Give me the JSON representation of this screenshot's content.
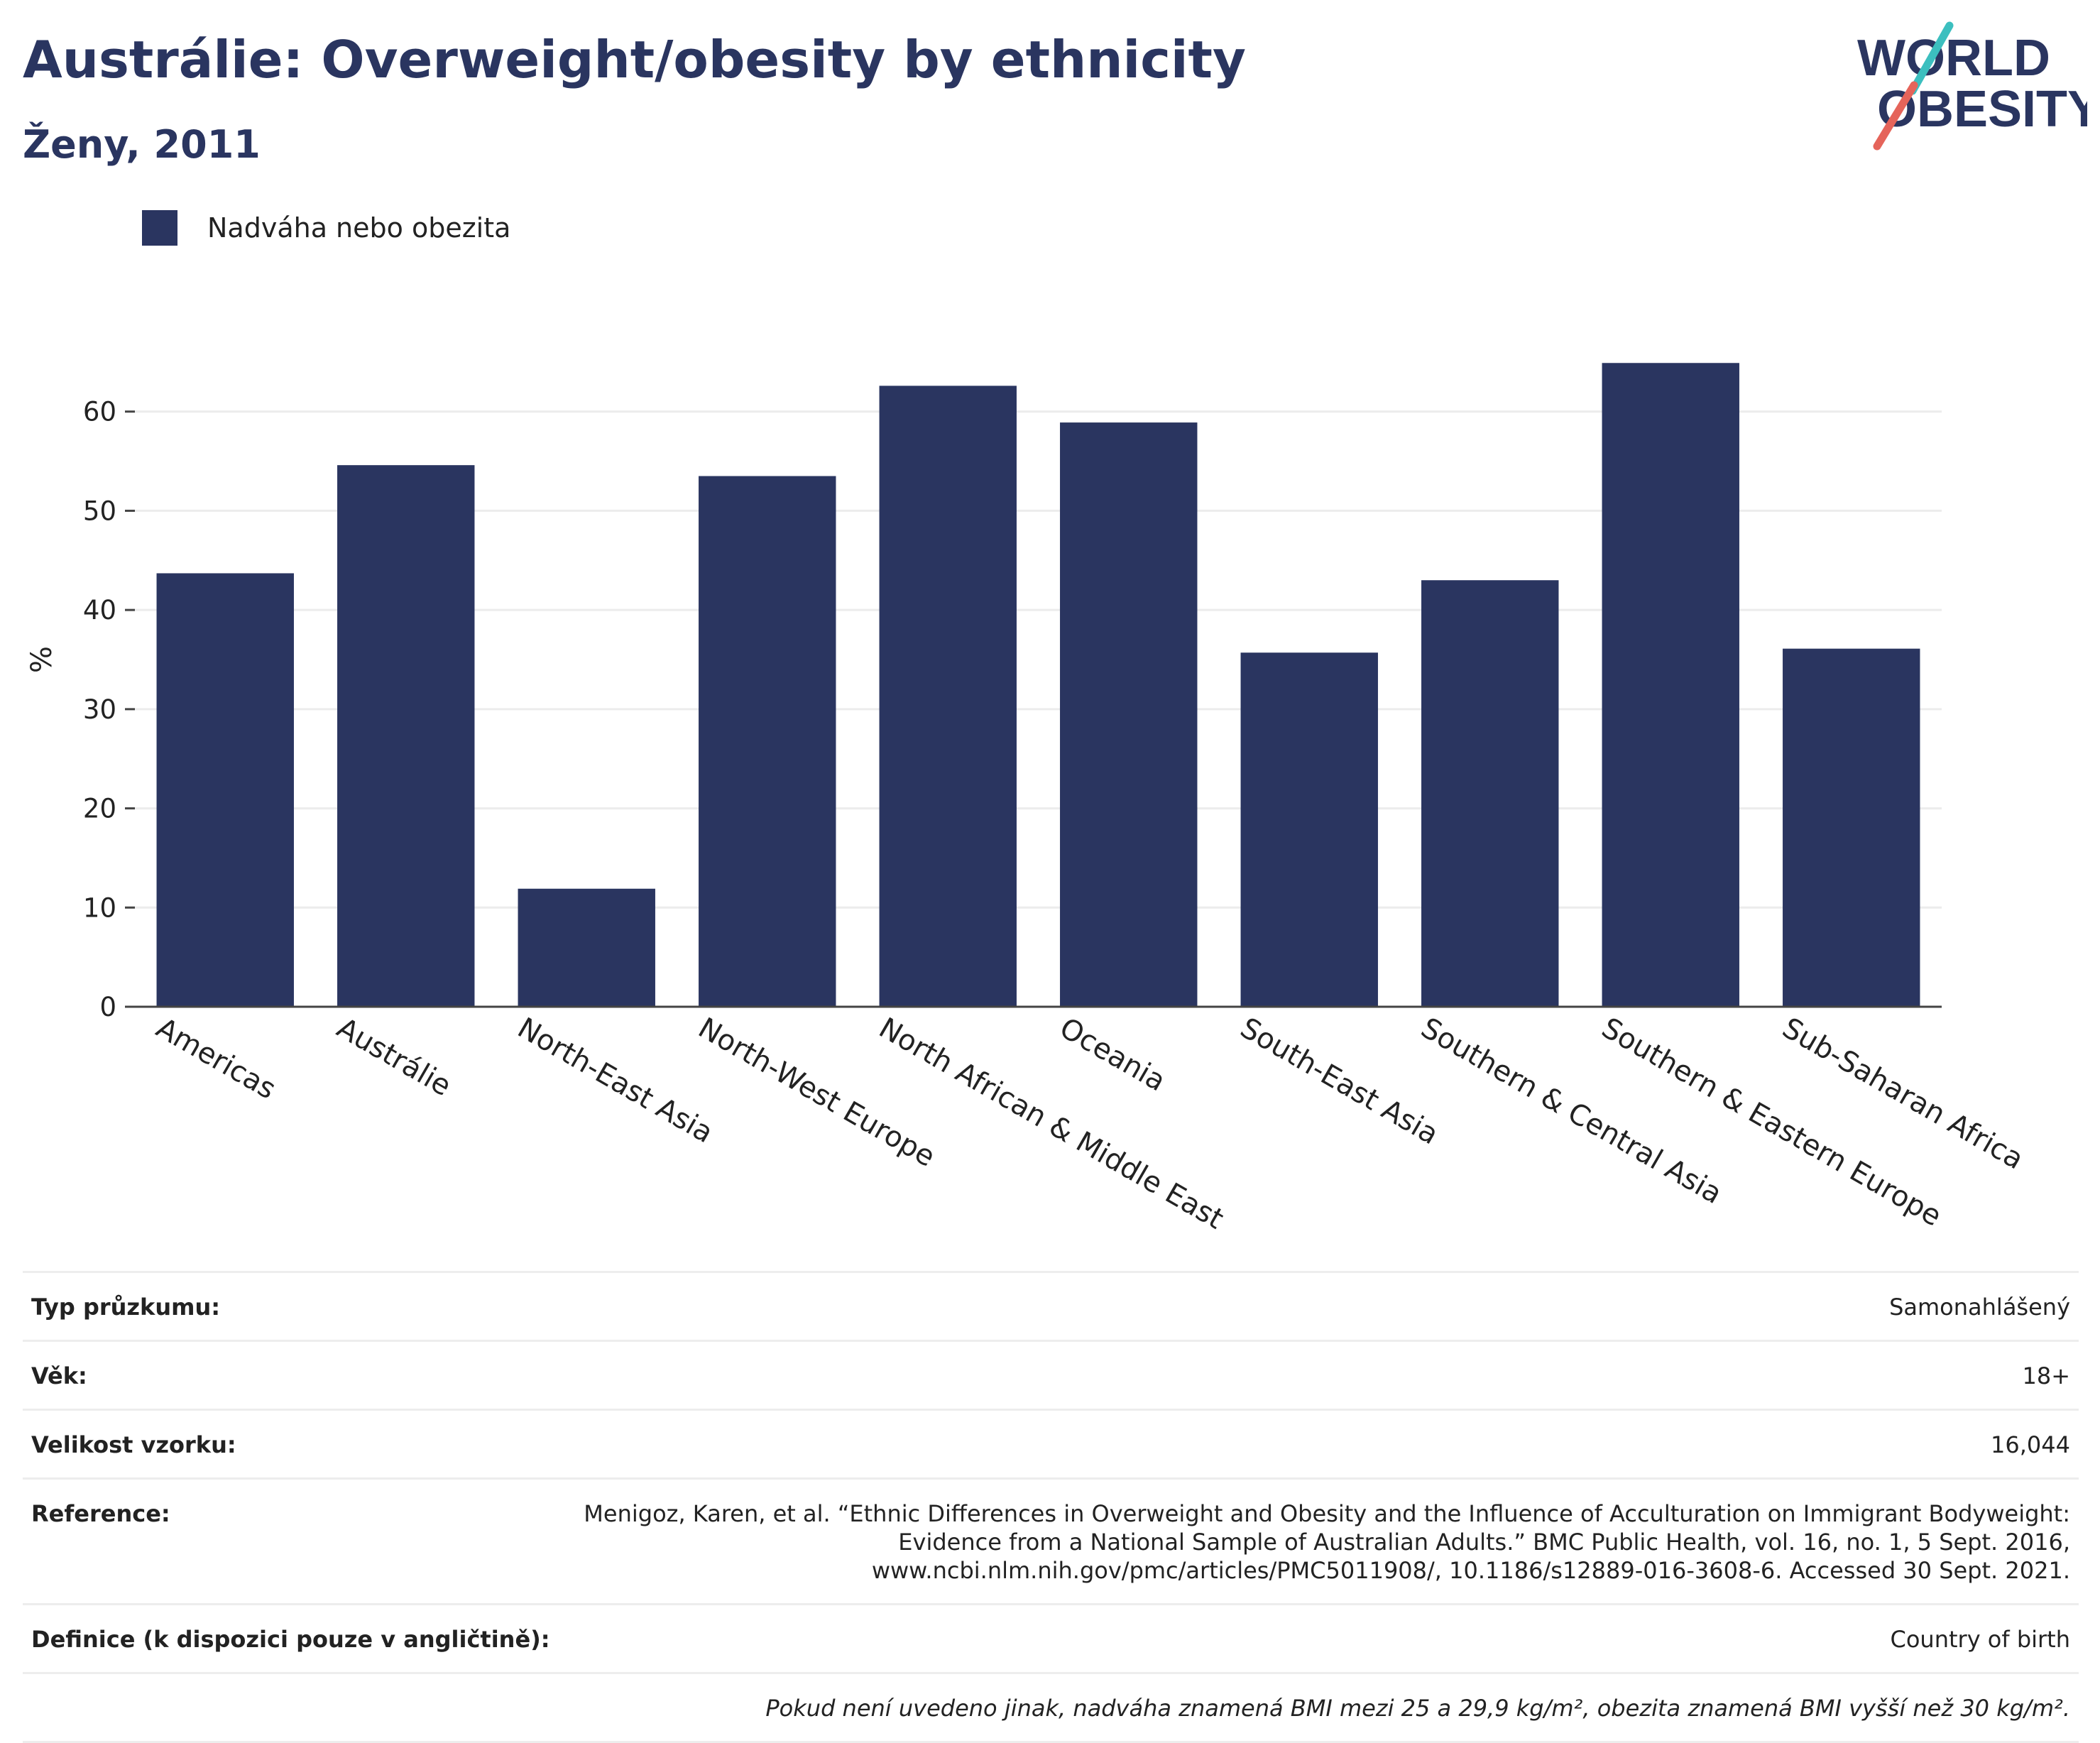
{
  "header": {
    "title": "Austrálie: Overweight/obesity by ethnicity",
    "subtitle": "Ženy, 2011"
  },
  "logo": {
    "line1": "WORLD",
    "line2": "OBESITY",
    "colors": {
      "text": "#2a3560",
      "slash_teal": "#3cbfbf",
      "slash_red": "#e5645a"
    }
  },
  "colors": {
    "bar": "#2a3560",
    "grid": "#ececec",
    "axis": "#444444"
  },
  "chart_data": {
    "type": "bar",
    "title": "Austrálie: Overweight/obesity by ethnicity",
    "subtitle": "Ženy, 2011",
    "ylabel": "%",
    "xlabel": "",
    "ylim": [
      0,
      70
    ],
    "yticks": [
      0,
      10,
      20,
      30,
      40,
      50,
      60
    ],
    "grid": true,
    "legend_position": "top-left",
    "categories": [
      "Americas",
      "Austrálie",
      "North-East Asia",
      "North-West Europe",
      "North African & Middle East",
      "Oceania",
      "South-East Asia",
      "Southern & Central Asia",
      "Southern & Eastern Europe",
      "Sub-Saharan Africa"
    ],
    "series": [
      {
        "name": "Nadváha nebo obezita",
        "values": [
          43.7,
          54.6,
          11.9,
          53.5,
          62.6,
          58.9,
          35.7,
          43.0,
          64.9,
          36.1
        ]
      }
    ]
  },
  "info": [
    {
      "label": "Typ průzkumu:",
      "value": "Samonahlášený"
    },
    {
      "label": "Věk:",
      "value": "18+"
    },
    {
      "label": "Velikost vzorku:",
      "value": "16,044"
    },
    {
      "label": "Reference:",
      "value": "Menigoz, Karen, et al. “Ethnic Differences in Overweight and Obesity and the Influence of Acculturation on Immigrant Bodyweight:\nEvidence from a National Sample of Australian Adults.” BMC Public Health, vol. 16, no. 1, 5 Sept. 2016,\nwww.ncbi.nlm.nih.gov/pmc/articles/PMC5011908/, 10.1186/s12889-016-3608-6. Accessed 30 Sept. 2021."
    },
    {
      "label": "Definice (k dispozici pouze v angličtině):",
      "value": "Country of birth"
    }
  ],
  "footnote": "Pokud není uvedeno jinak, nadváha znamená BMI mezi 25 a 29,9 kg/m², obezita znamená BMI vyšší než 30 kg/m²."
}
